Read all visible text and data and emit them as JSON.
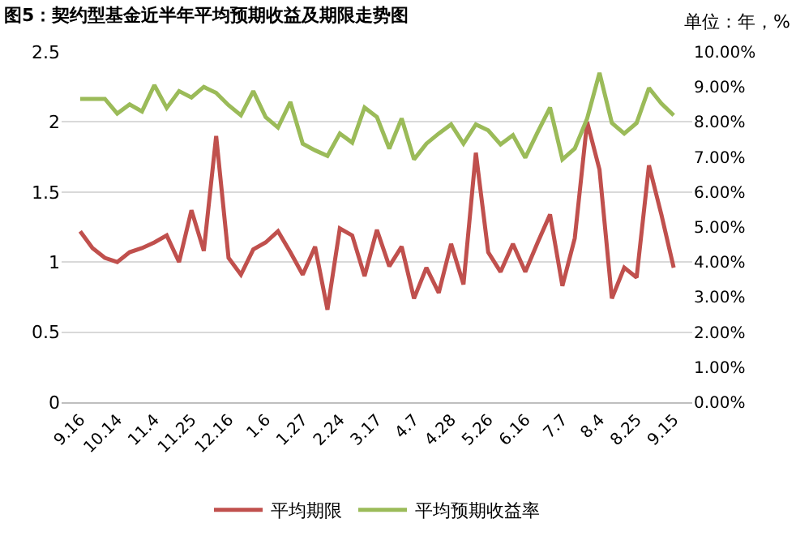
{
  "chart_data": {
    "type": "line",
    "title": "图5：契约型基金近半年平均预期收益及期限走势图",
    "annotations": [
      "单位：年，%"
    ],
    "categories": [
      "9.16",
      null,
      null,
      "10.14",
      null,
      null,
      "11.4",
      null,
      null,
      "11.25",
      null,
      null,
      "12.16",
      null,
      null,
      "1.6",
      null,
      null,
      "1.27",
      null,
      null,
      "2.24",
      null,
      null,
      "3.17",
      null,
      null,
      "4.7",
      null,
      null,
      "4.28",
      null,
      null,
      "5.26",
      null,
      null,
      "6.16",
      null,
      null,
      "7.7",
      null,
      null,
      "8.4",
      null,
      null,
      "8.25",
      null,
      null,
      "9.15"
    ],
    "series": [
      {
        "name": "平均期限",
        "color": "#c0504d",
        "values": [
          1.22,
          1.1,
          1.03,
          1.0,
          1.07,
          1.1,
          1.14,
          1.19,
          1.0,
          1.37,
          1.08,
          1.9,
          1.03,
          0.91,
          1.09,
          1.14,
          1.22,
          1.07,
          0.91,
          1.11,
          0.66,
          1.24,
          1.19,
          0.9,
          1.23,
          0.97,
          1.11,
          0.74,
          0.96,
          0.78,
          1.13,
          0.84,
          1.78,
          1.07,
          0.93,
          1.13,
          0.93,
          1.14,
          1.34,
          0.83,
          1.17,
          2.0,
          1.66,
          0.74,
          0.96,
          0.89,
          1.69,
          1.34,
          0.96
        ]
      },
      {
        "name": "平均预期收益率",
        "color": "#9bbb59",
        "axis": "y2",
        "values": [
          8.66,
          8.66,
          8.66,
          8.24,
          8.5,
          8.3,
          9.05,
          8.4,
          8.88,
          8.7,
          9.0,
          8.83,
          8.48,
          8.19,
          8.88,
          8.14,
          7.84,
          8.57,
          7.38,
          7.19,
          7.03,
          7.67,
          7.41,
          8.41,
          8.14,
          7.24,
          8.1,
          6.93,
          7.38,
          7.67,
          7.93,
          7.38,
          7.93,
          7.76,
          7.36,
          7.62,
          6.98,
          7.71,
          8.41,
          6.93,
          7.24,
          8.1,
          9.4,
          7.97,
          7.67,
          7.97,
          8.97,
          8.53,
          8.19
        ]
      }
    ],
    "ylim": [
      0,
      2.5
    ],
    "yticks": [
      0,
      0.5,
      1,
      1.5,
      2,
      2.5
    ],
    "y2lim": [
      0,
      10
    ],
    "y2ticks": [
      {
        "value": 0,
        "label": "0.00%"
      },
      {
        "value": 1,
        "label": "1.00%"
      },
      {
        "value": 2,
        "label": "2.00%"
      },
      {
        "value": 3,
        "label": "3.00%"
      },
      {
        "value": 4,
        "label": "4.00%"
      },
      {
        "value": 5,
        "label": "5.00%"
      },
      {
        "value": 6,
        "label": "6.00%"
      },
      {
        "value": 7,
        "label": "7.00%"
      },
      {
        "value": 8,
        "label": "8.00%"
      },
      {
        "value": 9,
        "label": "9.00%"
      },
      {
        "value": 10,
        "label": "10.00%"
      }
    ],
    "grid": "y",
    "legend": "bottom",
    "marker": "none",
    "line_style": "solid"
  }
}
